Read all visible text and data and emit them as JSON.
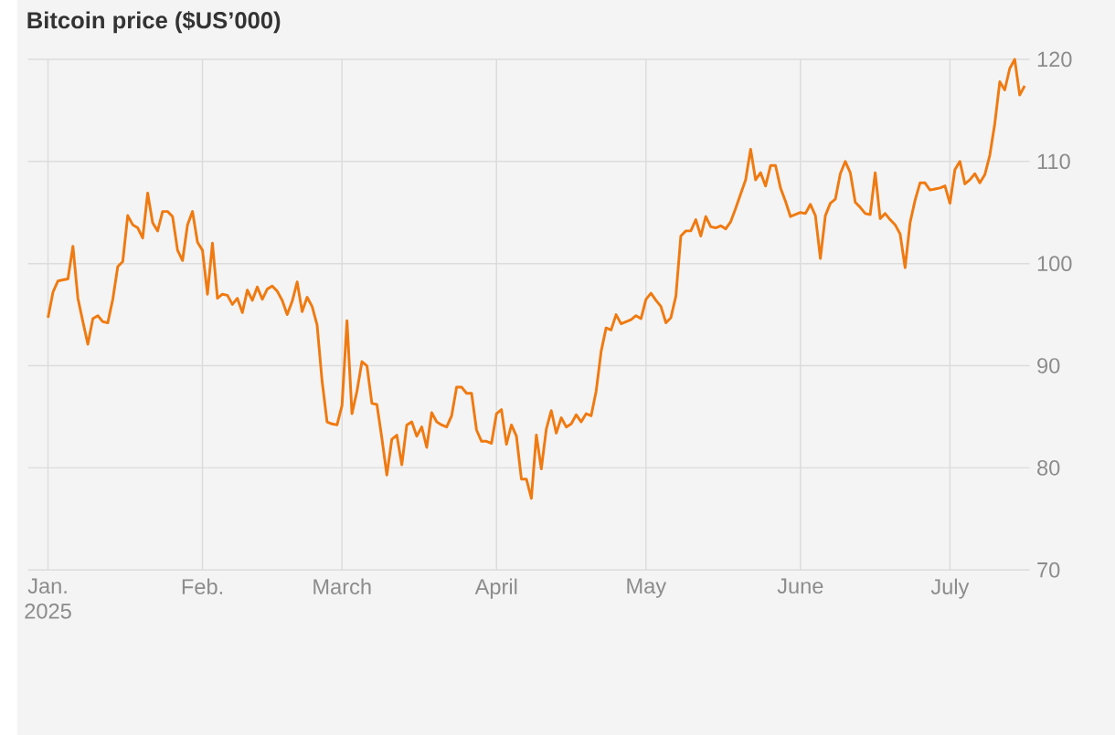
{
  "chart_data": {
    "type": "line",
    "title": "Bitcoin price ($US’000)",
    "x": [
      "2025-01-01",
      "2025-01-02",
      "2025-01-03",
      "2025-01-04",
      "2025-01-05",
      "2025-01-06",
      "2025-01-07",
      "2025-01-08",
      "2025-01-09",
      "2025-01-10",
      "2025-01-11",
      "2025-01-12",
      "2025-01-13",
      "2025-01-14",
      "2025-01-15",
      "2025-01-16",
      "2025-01-17",
      "2025-01-18",
      "2025-01-19",
      "2025-01-20",
      "2025-01-21",
      "2025-01-22",
      "2025-01-23",
      "2025-01-24",
      "2025-01-25",
      "2025-01-26",
      "2025-01-27",
      "2025-01-28",
      "2025-01-29",
      "2025-01-30",
      "2025-01-31",
      "2025-02-01",
      "2025-02-02",
      "2025-02-03",
      "2025-02-04",
      "2025-02-05",
      "2025-02-06",
      "2025-02-07",
      "2025-02-08",
      "2025-02-09",
      "2025-02-10",
      "2025-02-11",
      "2025-02-12",
      "2025-02-13",
      "2025-02-14",
      "2025-02-15",
      "2025-02-16",
      "2025-02-17",
      "2025-02-18",
      "2025-02-19",
      "2025-02-20",
      "2025-02-21",
      "2025-02-22",
      "2025-02-23",
      "2025-02-24",
      "2025-02-25",
      "2025-02-26",
      "2025-02-27",
      "2025-02-28",
      "2025-03-01",
      "2025-03-02",
      "2025-03-03",
      "2025-03-04",
      "2025-03-05",
      "2025-03-06",
      "2025-03-07",
      "2025-03-08",
      "2025-03-09",
      "2025-03-10",
      "2025-03-11",
      "2025-03-12",
      "2025-03-13",
      "2025-03-14",
      "2025-03-15",
      "2025-03-16",
      "2025-03-17",
      "2025-03-18",
      "2025-03-19",
      "2025-03-20",
      "2025-03-21",
      "2025-03-22",
      "2025-03-23",
      "2025-03-24",
      "2025-03-25",
      "2025-03-26",
      "2025-03-27",
      "2025-03-28",
      "2025-03-29",
      "2025-03-30",
      "2025-03-31",
      "2025-04-01",
      "2025-04-02",
      "2025-04-03",
      "2025-04-04",
      "2025-04-05",
      "2025-04-06",
      "2025-04-07",
      "2025-04-08",
      "2025-04-09",
      "2025-04-10",
      "2025-04-11",
      "2025-04-12",
      "2025-04-13",
      "2025-04-14",
      "2025-04-15",
      "2025-04-16",
      "2025-04-17",
      "2025-04-18",
      "2025-04-19",
      "2025-04-20",
      "2025-04-21",
      "2025-04-22",
      "2025-04-23",
      "2025-04-24",
      "2025-04-25",
      "2025-04-26",
      "2025-04-27",
      "2025-04-28",
      "2025-04-29",
      "2025-04-30",
      "2025-05-01",
      "2025-05-02",
      "2025-05-03",
      "2025-05-04",
      "2025-05-05",
      "2025-05-06",
      "2025-05-07",
      "2025-05-08",
      "2025-05-09",
      "2025-05-10",
      "2025-05-11",
      "2025-05-12",
      "2025-05-13",
      "2025-05-14",
      "2025-05-15",
      "2025-05-16",
      "2025-05-17",
      "2025-05-18",
      "2025-05-19",
      "2025-05-20",
      "2025-05-21",
      "2025-05-22",
      "2025-05-23",
      "2025-05-24",
      "2025-05-25",
      "2025-05-26",
      "2025-05-27",
      "2025-05-28",
      "2025-05-29",
      "2025-05-30",
      "2025-05-31",
      "2025-06-01",
      "2025-06-02",
      "2025-06-03",
      "2025-06-04",
      "2025-06-05",
      "2025-06-06",
      "2025-06-07",
      "2025-06-08",
      "2025-06-09",
      "2025-06-10",
      "2025-06-11",
      "2025-06-12",
      "2025-06-13",
      "2025-06-14",
      "2025-06-15",
      "2025-06-16",
      "2025-06-17",
      "2025-06-18",
      "2025-06-19",
      "2025-06-20",
      "2025-06-21",
      "2025-06-22",
      "2025-06-23",
      "2025-06-24",
      "2025-06-25",
      "2025-06-26",
      "2025-06-27",
      "2025-06-28",
      "2025-06-29",
      "2025-06-30",
      "2025-07-01",
      "2025-07-02",
      "2025-07-03",
      "2025-07-04",
      "2025-07-05",
      "2025-07-06",
      "2025-07-07",
      "2025-07-08",
      "2025-07-09",
      "2025-07-10",
      "2025-07-11",
      "2025-07-12",
      "2025-07-13",
      "2025-07-14",
      "2025-07-15",
      "2025-07-16"
    ],
    "values": [
      94.7,
      97.2,
      98.3,
      98.4,
      98.5,
      101.7,
      96.6,
      94.3,
      92.1,
      94.6,
      94.9,
      94.3,
      94.2,
      96.5,
      99.7,
      100.2,
      104.7,
      103.8,
      103.5,
      102.5,
      106.9,
      104.0,
      103.2,
      105.1,
      105.1,
      104.6,
      101.3,
      100.3,
      103.8,
      105.1,
      102.1,
      101.3,
      97.0,
      102.0,
      96.6,
      97.0,
      96.9,
      96.0,
      96.6,
      95.2,
      97.4,
      96.4,
      97.7,
      96.5,
      97.5,
      97.8,
      97.3,
      96.4,
      95.0,
      96.3,
      98.2,
      95.3,
      96.7,
      95.8,
      94.0,
      88.5,
      84.5,
      84.3,
      84.2,
      86.1,
      94.4,
      85.3,
      87.5,
      90.4,
      90.0,
      86.3,
      86.2,
      82.9,
      79.3,
      82.8,
      83.2,
      80.3,
      84.2,
      84.5,
      83.1,
      84.0,
      82.0,
      85.4,
      84.5,
      84.2,
      84.0,
      85.1,
      87.9,
      87.9,
      87.3,
      87.3,
      83.7,
      82.6,
      82.6,
      82.4,
      85.3,
      85.7,
      82.3,
      84.2,
      83.1,
      78.9,
      78.9,
      77.0,
      83.2,
      79.9,
      83.8,
      85.6,
      83.4,
      84.9,
      84.0,
      84.3,
      85.2,
      84.5,
      85.3,
      85.1,
      87.5,
      91.4,
      93.7,
      93.5,
      95.0,
      94.1,
      94.3,
      94.5,
      94.9,
      94.6,
      96.5,
      97.1,
      96.4,
      95.8,
      94.2,
      94.7,
      96.8,
      102.7,
      103.2,
      103.2,
      104.3,
      102.7,
      104.6,
      103.6,
      103.5,
      103.7,
      103.4,
      104.1,
      105.4,
      106.8,
      108.2,
      111.2,
      108.2,
      108.9,
      107.6,
      109.6,
      109.6,
      107.4,
      106.1,
      104.6,
      104.8,
      105.0,
      104.9,
      105.8,
      104.7,
      100.5,
      104.7,
      105.9,
      106.3,
      108.8,
      110.0,
      108.9,
      106.0,
      105.5,
      104.9,
      104.8,
      108.9,
      104.4,
      104.9,
      104.3,
      103.8,
      102.9,
      99.6,
      104.0,
      106.2,
      107.9,
      107.9,
      107.2,
      107.3,
      107.4,
      107.6,
      105.9,
      109.2,
      110.0,
      107.8,
      108.2,
      108.8,
      107.9,
      108.7,
      110.6,
      113.7,
      117.8,
      117.0,
      119.1,
      120.0,
      116.5,
      117.4
    ],
    "color": "#f07a10",
    "line_style": "solid",
    "xlim": [
      "2024-12-28",
      "2025-07-17"
    ],
    "xticks": [
      {
        "value": "2025-01-01",
        "label": "Jan. 2025"
      },
      {
        "value": "2025-02-01",
        "label": "Feb."
      },
      {
        "value": "2025-03-01",
        "label": "March"
      },
      {
        "value": "2025-04-01",
        "label": "April"
      },
      {
        "value": "2025-05-01",
        "label": "May"
      },
      {
        "value": "2025-06-01",
        "label": "June"
      },
      {
        "value": "2025-07-01",
        "label": "July"
      }
    ],
    "ylim": [
      70,
      120
    ],
    "yticks": [
      70,
      80,
      90,
      100,
      110,
      120
    ],
    "grid": true
  }
}
